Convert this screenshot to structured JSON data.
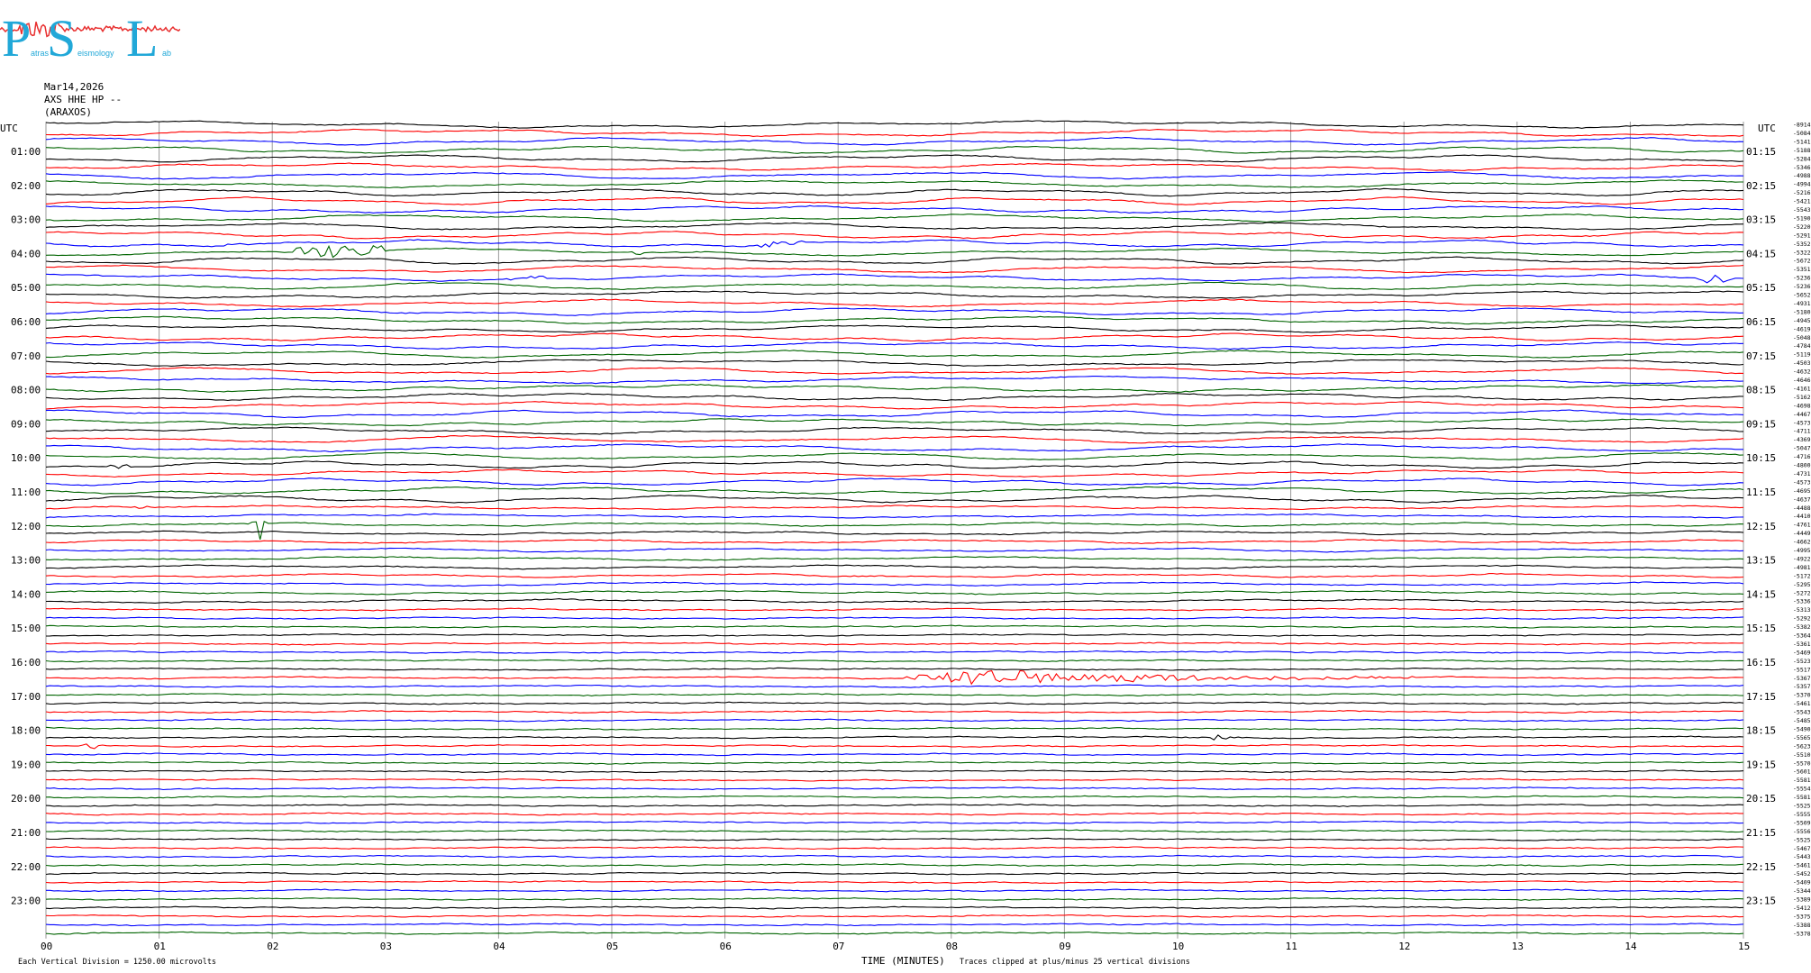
{
  "logo": {
    "big_letters": [
      "P",
      "S",
      "L"
    ],
    "small_text": [
      "atras",
      "eismology",
      "ab"
    ],
    "color": "#21a8d8",
    "signal_color": "#e83030"
  },
  "header": {
    "date": "Mar14,2026",
    "channel": "AXS HHE HP --",
    "station": "(ARAXOS)"
  },
  "chart_data": {
    "type": "line",
    "title": "",
    "xlabel": "TIME (MINUTES)",
    "ylabel": "",
    "xlim": [
      0,
      15
    ],
    "x_ticks": [
      "00",
      "01",
      "02",
      "03",
      "04",
      "05",
      "06",
      "07",
      "08",
      "09",
      "10",
      "11",
      "12",
      "13",
      "14",
      "15"
    ],
    "left_axis_label": "UTC",
    "right_axis_label": "UTC",
    "left_hour_labels": [
      "01:00",
      "02:00",
      "03:00",
      "04:00",
      "05:00",
      "06:00",
      "07:00",
      "08:00",
      "09:00",
      "10:00",
      "11:00",
      "12:00",
      "13:00",
      "14:00",
      "15:00",
      "16:00",
      "17:00",
      "18:00",
      "19:00",
      "20:00",
      "21:00",
      "22:00",
      "23:00"
    ],
    "right_hour_labels": [
      "01:15",
      "02:15",
      "03:15",
      "04:15",
      "05:15",
      "06:15",
      "07:15",
      "08:15",
      "09:15",
      "10:15",
      "11:15",
      "12:15",
      "13:15",
      "14:15",
      "15:15",
      "16:15",
      "17:15",
      "18:15",
      "19:15",
      "20:15",
      "21:15",
      "22:15",
      "23:15"
    ],
    "trace_count": 96,
    "trace_colors": [
      "#000000",
      "#ff0000",
      "#0000ff",
      "#006400"
    ],
    "trace_means": [
      "8914",
      "5084",
      "5141",
      "5188",
      "5284",
      "5346",
      "4988",
      "4994",
      "5216",
      "5421",
      "5543",
      "5190",
      "5220",
      "5291",
      "5352",
      "5322",
      "5672",
      "5351",
      "5236",
      "5236",
      "5652",
      "4931",
      "5180",
      "4945",
      "4619",
      "5048",
      "4784",
      "5119",
      "4503",
      "4632",
      "4646",
      "4161",
      "5162",
      "4698",
      "4467",
      "4573",
      "4711",
      "4369",
      "5047",
      "4716",
      "4800",
      "4731",
      "4573",
      "4695",
      "4637",
      "4488",
      "4410",
      "4761",
      "4449",
      "4662",
      "4995",
      "4922",
      "4981",
      "5172",
      "5295",
      "5272",
      "5336",
      "5313",
      "5292",
      "5382",
      "5364",
      "5361",
      "5469",
      "5523",
      "5517",
      "5367",
      "5357",
      "5370",
      "5461",
      "5543",
      "5485",
      "5490",
      "5565",
      "5623",
      "5510",
      "5570",
      "5601",
      "5581",
      "5554",
      "5581",
      "5525",
      "5555",
      "5509",
      "5556",
      "5525",
      "5467",
      "5443",
      "5461",
      "5452",
      "5409",
      "5344",
      "5389",
      "5412",
      "5375",
      "5388",
      "5378"
    ],
    "events": [
      {
        "trace": 14,
        "minute": 1.6,
        "amplitude": 0.4,
        "duration": 0.15
      },
      {
        "trace": 15,
        "minute": 2.2,
        "amplitude": 0.7,
        "duration": 0.8
      },
      {
        "trace": 15,
        "minute": 5.2,
        "amplitude": 0.3,
        "duration": 0.1
      },
      {
        "trace": 14,
        "minute": 6.3,
        "amplitude": 0.3,
        "duration": 0.4
      },
      {
        "trace": 18,
        "minute": 4.1,
        "amplitude": 0.3,
        "duration": 0.3
      },
      {
        "trace": 18,
        "minute": 14.6,
        "amplitude": 0.5,
        "duration": 0.3
      },
      {
        "trace": 40,
        "minute": 0.5,
        "amplitude": 0.3,
        "duration": 0.3
      },
      {
        "trace": 45,
        "minute": 0.8,
        "amplitude": 0.4,
        "duration": 0.1
      },
      {
        "trace": 47,
        "minute": 1.8,
        "amplitude": 2.6,
        "duration": 0.15
      },
      {
        "trace": 44,
        "minute": 9.2,
        "amplitude": 0.4,
        "duration": 0.2
      },
      {
        "trace": 65,
        "minute": 7.6,
        "amplitude": 1.2,
        "duration": 4.5
      },
      {
        "trace": 72,
        "minute": 10.3,
        "amplitude": 0.6,
        "duration": 0.15
      },
      {
        "trace": 73,
        "minute": 0.3,
        "amplitude": 0.3,
        "duration": 0.2
      }
    ]
  },
  "footer": {
    "scale_note": "Each Vertical Division = 1250.00 microvolts",
    "xlabel": "TIME (MINUTES)",
    "clip_note": "Traces clipped at plus/minus 25 vertical divisions"
  }
}
